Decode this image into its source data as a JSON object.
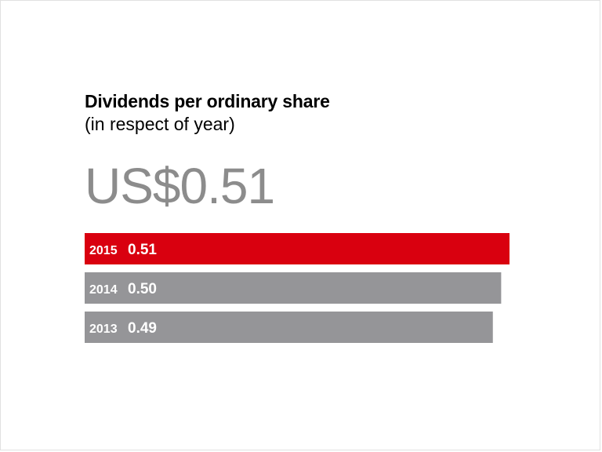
{
  "title": "Dividends per ordinary share",
  "subtitle": "(in respect of year)",
  "headline": "US$0.51",
  "colors": {
    "highlight": "#d9000f",
    "bar": "#959598",
    "headline": "#8c8c8c",
    "label": "#ffffff"
  },
  "chart_data": {
    "type": "bar",
    "orientation": "horizontal",
    "title": "Dividends per ordinary share",
    "subtitle": "(in respect of year)",
    "categories": [
      "2015",
      "2014",
      "2013"
    ],
    "values": [
      0.51,
      0.5,
      0.49
    ],
    "value_labels": [
      "0.51",
      "0.50",
      "0.49"
    ],
    "highlight_category": "2015",
    "xlim": [
      0,
      0.51
    ],
    "grid": false,
    "legend": "none"
  }
}
